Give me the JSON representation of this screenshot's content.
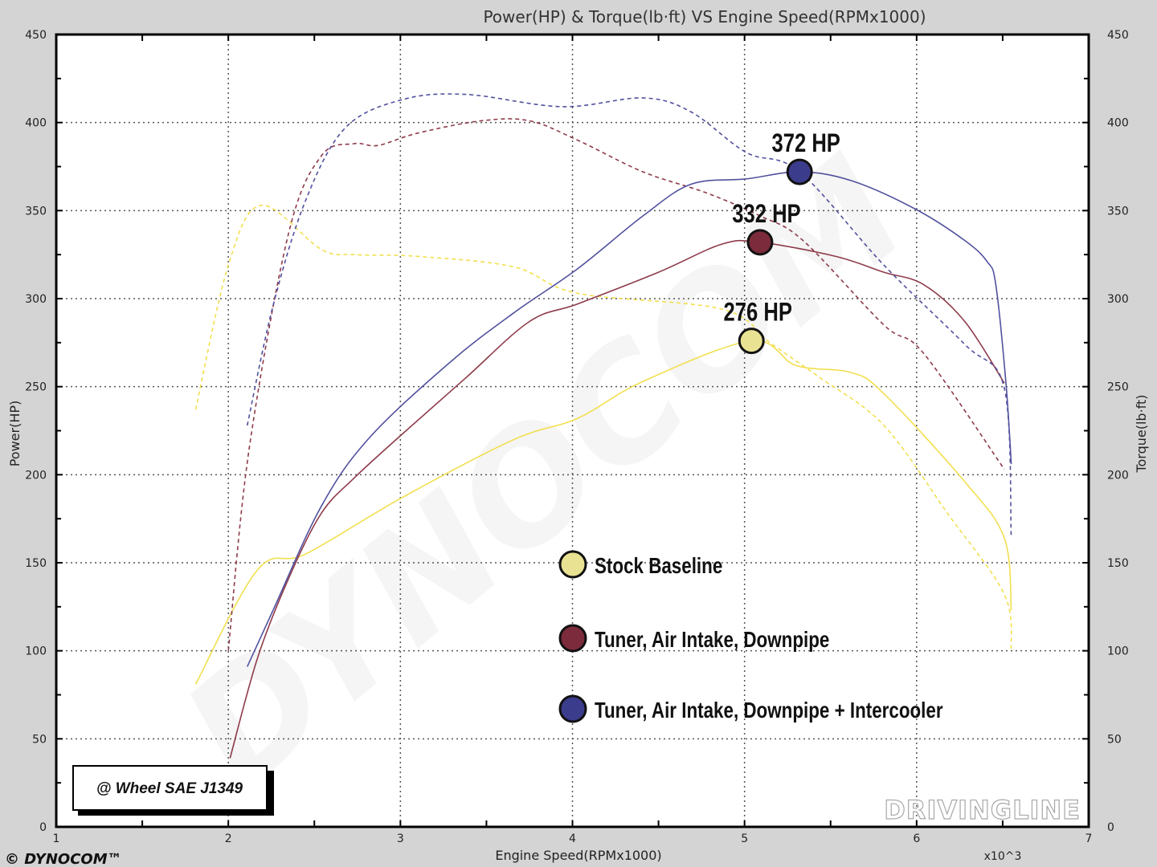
{
  "chart_data": {
    "type": "line",
    "title": "Power(HP) & Torque(lb·ft) VS Engine Speed(RPMx1000)",
    "xlabel": "Engine Speed(RPMx1000)",
    "x_multiplier_label": "x10^3",
    "ylabel_left": "Power(HP)",
    "ylabel_right": "Torque(lb·ft)",
    "xlim": [
      1,
      7
    ],
    "ylim": [
      0,
      450
    ],
    "x_ticks": [
      1,
      2,
      3,
      4,
      5,
      6,
      7
    ],
    "y_ticks": [
      0,
      50,
      100,
      150,
      200,
      250,
      300,
      350,
      400,
      450
    ],
    "grid": true,
    "legend_placement": "center-bottom",
    "annotation": "@ Wheel SAE J1349",
    "series": [
      {
        "name": "Stock Baseline",
        "kind": "power",
        "style": "solid",
        "color": "#f2df4f",
        "x": [
          1.81,
          2.17,
          2.45,
          3.01,
          3.66,
          4.03,
          4.41,
          5.04,
          5.3,
          5.62,
          5.81,
          6.28,
          6.51,
          6.55
        ],
        "y": [
          81,
          146,
          155,
          187,
          220,
          232,
          253,
          276,
          262,
          258,
          246,
          196,
          164,
          123
        ]
      },
      {
        "name": "Stock Baseline",
        "kind": "torque",
        "style": "dashed",
        "color": "#f2df4f",
        "x": [
          1.81,
          2.0,
          2.19,
          2.54,
          2.73,
          3.1,
          3.66,
          4.03,
          4.87,
          5.16,
          5.44,
          5.81,
          6.18,
          6.51,
          6.55
        ],
        "y": [
          237,
          319,
          353,
          328,
          325,
          324,
          318,
          303,
          294,
          274,
          255,
          228,
          178,
          132,
          100
        ]
      },
      {
        "name": "Tuner, Air Intake, Downpipe",
        "kind": "power",
        "style": "solid",
        "color": "#8e3b4a",
        "x": [
          2.01,
          2.17,
          2.35,
          2.54,
          2.73,
          3.01,
          3.38,
          3.75,
          4.03,
          4.5,
          4.87,
          5.09,
          5.53,
          5.81,
          6.04,
          6.28,
          6.51
        ],
        "y": [
          39,
          96,
          141,
          178,
          198,
          223,
          255,
          287,
          297,
          315,
          331,
          332,
          324,
          315,
          308,
          287,
          252
        ]
      },
      {
        "name": "Tuner, Air Intake, Downpipe",
        "kind": "torque",
        "style": "dashed",
        "color": "#8e3b4a",
        "x": [
          2.0,
          2.12,
          2.35,
          2.54,
          2.73,
          2.87,
          3.1,
          3.47,
          3.75,
          4.03,
          4.41,
          4.78,
          5.09,
          5.34,
          5.81,
          6.04,
          6.51
        ],
        "y": [
          100,
          214,
          337,
          381,
          388,
          387,
          394,
          401,
          401,
          390,
          372,
          360,
          347,
          333,
          285,
          269,
          203
        ]
      },
      {
        "name": "Tuner, Air Intake, Downpipe + Intercooler",
        "kind": "power",
        "style": "solid",
        "color": "#51519e",
        "x": [
          2.11,
          2.26,
          2.54,
          2.82,
          3.29,
          3.66,
          4.03,
          4.41,
          4.69,
          5.01,
          5.32,
          5.62,
          5.99,
          6.28,
          6.41,
          6.46,
          6.52,
          6.55
        ],
        "y": [
          91,
          123,
          182,
          221,
          264,
          292,
          317,
          347,
          365,
          368,
          372,
          367,
          351,
          333,
          321,
          308,
          251,
          206
        ]
      },
      {
        "name": "Tuner, Air Intake, Downpipe + Intercooler",
        "kind": "torque",
        "style": "dashed",
        "color": "#51519e",
        "x": [
          2.11,
          2.26,
          2.45,
          2.68,
          3.01,
          3.38,
          3.94,
          4.41,
          4.69,
          5.01,
          5.32,
          5.81,
          6.28,
          6.51,
          6.55
        ],
        "y": [
          228,
          296,
          356,
          397,
          413,
          416,
          409,
          414,
          406,
          383,
          372,
          319,
          274,
          249,
          164
        ]
      }
    ],
    "peaks": [
      {
        "label": "276 HP",
        "x": 5.04,
        "y": 276,
        "fill": "#e9e293"
      },
      {
        "label": "332 HP",
        "x": 5.09,
        "y": 332,
        "fill": "#7c2b3c"
      },
      {
        "label": "372 HP",
        "x": 5.32,
        "y": 372,
        "fill": "#3c3c8c"
      }
    ],
    "legend": [
      {
        "label": "Stock Baseline",
        "fill": "#e9e293"
      },
      {
        "label": "Tuner, Air Intake, Downpipe",
        "fill": "#7c2b3c"
      },
      {
        "label": "Tuner, Air Intake, Downpipe + Intercooler",
        "fill": "#3c3c8c"
      }
    ]
  },
  "branding": {
    "dynocom": "© DYNOCOM™",
    "watermark": "DYNOCOM",
    "drivingline": "DRIVINGLINE"
  }
}
